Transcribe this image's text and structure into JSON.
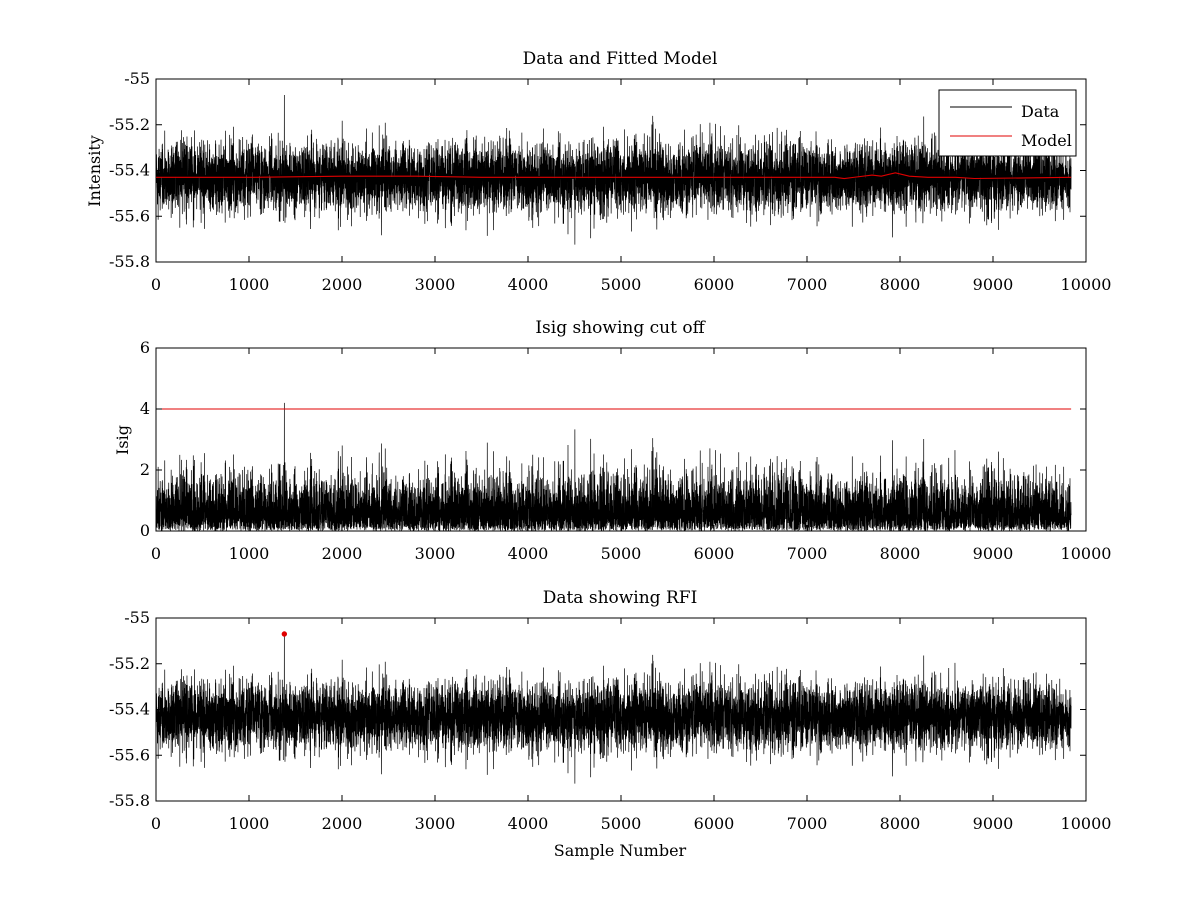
{
  "chart_data": [
    {
      "type": "line",
      "title": "Data and Fitted Model",
      "xlabel": "",
      "ylabel": "Intensity",
      "xlim": [
        0,
        10000
      ],
      "ylim": [
        -55.8,
        -55.0
      ],
      "xticks": [
        0,
        1000,
        2000,
        3000,
        4000,
        5000,
        6000,
        7000,
        8000,
        9000,
        10000
      ],
      "yticks": [
        -55.8,
        -55.6,
        -55.4,
        -55.2,
        -55.0
      ],
      "ytick_labels": [
        "-55.8",
        "-55.6",
        "-55.4",
        "-55.2",
        "-55"
      ],
      "grid": false,
      "legend_position": "top-right",
      "series": [
        {
          "name": "Data",
          "color": "#000000",
          "kind": "noise",
          "x_range": [
            1,
            9840
          ],
          "points": 9840,
          "mean": -55.43,
          "std": 0.075,
          "min": -55.77,
          "max": -55.07,
          "spike": {
            "x": 1380,
            "y": -55.07
          }
        },
        {
          "name": "Model",
          "color": "#e00000",
          "x": [
            1,
            1000,
            2000,
            2800,
            3500,
            5000,
            6000,
            7300,
            7400,
            7500,
            7700,
            7800,
            7950,
            8100,
            8300,
            8600,
            8800,
            9840
          ],
          "y": [
            -55.43,
            -55.43,
            -55.425,
            -55.425,
            -55.43,
            -55.43,
            -55.43,
            -55.43,
            -55.435,
            -55.43,
            -55.42,
            -55.425,
            -55.41,
            -55.425,
            -55.43,
            -55.43,
            -55.435,
            -55.43
          ]
        }
      ]
    },
    {
      "type": "line",
      "title": "Isig showing cut off",
      "xlabel": "",
      "ylabel": "Isig",
      "xlim": [
        0,
        10000
      ],
      "ylim": [
        0,
        6
      ],
      "xticks": [
        0,
        1000,
        2000,
        3000,
        4000,
        5000,
        6000,
        7000,
        8000,
        9000,
        10000
      ],
      "yticks": [
        0,
        2,
        4,
        6
      ],
      "ytick_labels": [
        "0",
        "2",
        "4",
        "6"
      ],
      "grid": false,
      "series": [
        {
          "color": "#000000",
          "kind": "abs-noise",
          "x_range": [
            1,
            9840
          ],
          "points": 9840,
          "typical_max": 3.5,
          "spike": {
            "x": 1380,
            "y": 4.2
          }
        },
        {
          "color": "#e00000",
          "kind": "threshold",
          "x": [
            1,
            9840
          ],
          "y": [
            4,
            4
          ]
        }
      ]
    },
    {
      "type": "line",
      "title": "Data showing RFI",
      "xlabel": "Sample Number",
      "ylabel": "",
      "xlim": [
        0,
        10000
      ],
      "ylim": [
        -55.8,
        -55.0
      ],
      "xticks": [
        0,
        1000,
        2000,
        3000,
        4000,
        5000,
        6000,
        7000,
        8000,
        9000,
        10000
      ],
      "yticks": [
        -55.8,
        -55.6,
        -55.4,
        -55.2,
        -55.0
      ],
      "ytick_labels": [
        "-55.8",
        "-55.6",
        "-55.4",
        "-55.2",
        "-55"
      ],
      "grid": false,
      "series": [
        {
          "color": "#000000",
          "kind": "noise",
          "x_range": [
            1,
            9840
          ],
          "points": 9840,
          "mean": -55.43,
          "std": 0.075,
          "min": -55.77,
          "max": -55.07,
          "spike": {
            "x": 1380,
            "y": -55.07
          }
        },
        {
          "color": "#e00000",
          "kind": "marker",
          "x": [
            1380
          ],
          "y": [
            -55.07
          ]
        }
      ]
    }
  ]
}
